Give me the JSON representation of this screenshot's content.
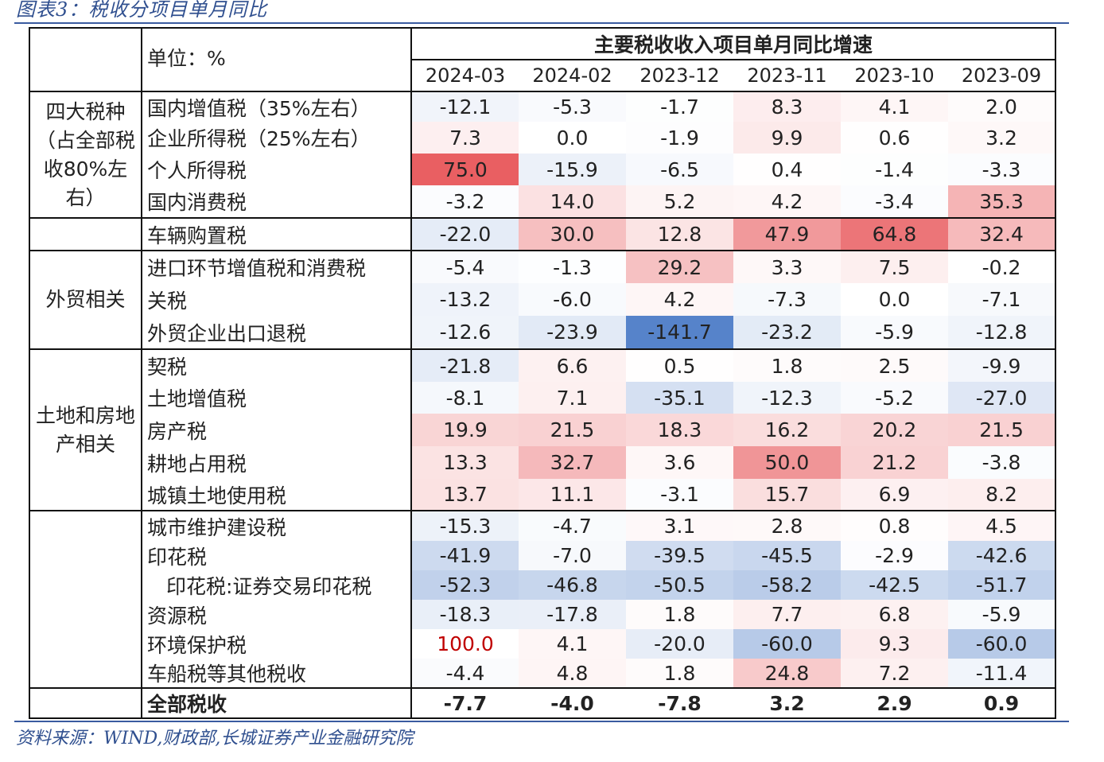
{
  "figure_title": "图表3：税收分项目单月同比",
  "source": "资料来源：WIND,财政部,长城证券产业金融研究院",
  "unit_label": "单位：%",
  "main_header": "主要税收收入项目单月同比增速",
  "columns": [
    "2024-03",
    "2024-02",
    "2023-12",
    "2023-11",
    "2023-10",
    "2023-09"
  ],
  "groups": [
    {
      "label": "四大税种（占全部税收80%左右）",
      "rows": 4
    },
    {
      "label": "",
      "rows": 1
    },
    {
      "label": "外贸相关",
      "rows": 3
    },
    {
      "label": "土地和房地产相关",
      "rows": 5
    },
    {
      "label": "",
      "rows": 6
    },
    {
      "label": "",
      "rows": 1
    }
  ],
  "rows": [
    {
      "name": "国内增值税（35%左右）",
      "values": [
        "-12.1",
        "-5.3",
        "-1.7",
        "8.3",
        "4.1",
        "2.0"
      ]
    },
    {
      "name": "企业所得税（25%左右）",
      "values": [
        "7.3",
        "0.0",
        "-1.9",
        "9.9",
        "0.6",
        "3.2"
      ]
    },
    {
      "name": "个人所得税",
      "values": [
        "75.0",
        "-15.9",
        "-6.5",
        "0.4",
        "-1.4",
        "-3.3"
      ]
    },
    {
      "name": "国内消费税",
      "values": [
        "-3.2",
        "14.0",
        "5.2",
        "4.2",
        "-3.4",
        "35.3"
      ]
    },
    {
      "name": "车辆购置税",
      "values": [
        "-22.0",
        "30.0",
        "12.8",
        "47.9",
        "64.8",
        "32.4"
      ]
    },
    {
      "name": "进口环节增值税和消费税",
      "values": [
        "-5.4",
        "-1.3",
        "29.2",
        "3.3",
        "7.5",
        "-0.2"
      ]
    },
    {
      "name": "关税",
      "values": [
        "-13.2",
        "-6.0",
        "4.2",
        "-7.3",
        "0.0",
        "-7.1"
      ]
    },
    {
      "name": "外贸企业出口退税",
      "values": [
        "-12.6",
        "-23.9",
        "-141.7",
        "-23.2",
        "-5.9",
        "-12.8"
      ]
    },
    {
      "name": "契税",
      "values": [
        "-21.8",
        "6.6",
        "0.5",
        "1.8",
        "2.5",
        "-9.9"
      ]
    },
    {
      "name": "土地增值税",
      "values": [
        "-8.1",
        "7.1",
        "-35.1",
        "-12.3",
        "-5.2",
        "-27.0"
      ]
    },
    {
      "name": "房产税",
      "values": [
        "19.9",
        "21.5",
        "18.3",
        "16.2",
        "20.2",
        "21.5"
      ]
    },
    {
      "name": "耕地占用税",
      "values": [
        "13.3",
        "32.7",
        "3.6",
        "50.0",
        "21.2",
        "-3.8"
      ]
    },
    {
      "name": "城镇土地使用税",
      "values": [
        "13.7",
        "11.1",
        "-3.1",
        "15.7",
        "6.9",
        "8.2"
      ]
    },
    {
      "name": "城市维护建设税",
      "values": [
        "-15.3",
        "-4.7",
        "3.1",
        "2.8",
        "0.8",
        "4.5"
      ]
    },
    {
      "name": "印花税",
      "values": [
        "-41.9",
        "-7.0",
        "-39.5",
        "-45.5",
        "-2.9",
        "-42.6"
      ]
    },
    {
      "name": "印花税:证券交易印花税",
      "values": [
        "-52.3",
        "-46.8",
        "-50.5",
        "-58.2",
        "-42.5",
        "-51.7"
      ],
      "indent": true
    },
    {
      "name": "资源税",
      "values": [
        "-18.3",
        "-17.8",
        "1.8",
        "7.7",
        "6.8",
        "-5.9"
      ]
    },
    {
      "name": "环境保护税",
      "values": [
        "100.0",
        "4.1",
        "-20.0",
        "-60.0",
        "9.3",
        "-60.0"
      ]
    },
    {
      "name": "车船税等其他税收",
      "values": [
        "-4.4",
        "4.8",
        "1.8",
        "24.8",
        "7.2",
        "-11.4"
      ]
    },
    {
      "name": "全部税收",
      "values": [
        "-7.7",
        "-4.0",
        "-7.8",
        "3.2",
        "2.9",
        "0.9"
      ],
      "total": true
    }
  ],
  "colors": {
    "positive": "#e8575a",
    "negative": "#4d7cc7",
    "neutral": "#ffffff"
  }
}
